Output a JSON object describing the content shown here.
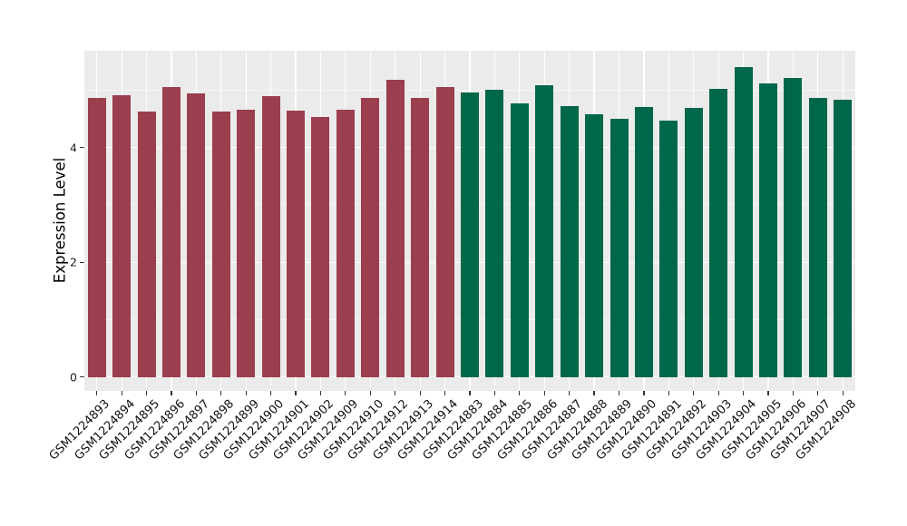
{
  "chart_data": {
    "type": "bar",
    "title": "",
    "xlabel": "",
    "ylabel": "Expression Level",
    "categories": [
      "GSM1224893",
      "GSM1224894",
      "GSM1224895",
      "GSM1224896",
      "GSM1224897",
      "GSM1224898",
      "GSM1224899",
      "GSM1224900",
      "GSM1224901",
      "GSM1224902",
      "GSM1224909",
      "GSM1224910",
      "GSM1224912",
      "GSM1224913",
      "GSM1224914",
      "GSM1224883",
      "GSM1224884",
      "GSM1224885",
      "GSM1224886",
      "GSM1224887",
      "GSM1224888",
      "GSM1224889",
      "GSM1224890",
      "GSM1224891",
      "GSM1224892",
      "GSM1224903",
      "GSM1224904",
      "GSM1224905",
      "GSM1224906",
      "GSM1224907",
      "GSM1224908"
    ],
    "values": [
      4.86,
      4.92,
      4.62,
      5.06,
      4.95,
      4.63,
      4.66,
      4.9,
      4.64,
      4.53,
      4.66,
      4.86,
      5.18,
      4.87,
      5.05,
      4.96,
      5.0,
      4.77,
      5.09,
      4.73,
      4.58,
      4.5,
      4.71,
      4.47,
      4.69,
      5.02,
      5.4,
      5.11,
      5.21,
      4.86,
      4.84
    ],
    "bar_groups": [
      "maroon",
      "maroon",
      "maroon",
      "maroon",
      "maroon",
      "maroon",
      "maroon",
      "maroon",
      "maroon",
      "maroon",
      "maroon",
      "maroon",
      "maroon",
      "maroon",
      "maroon",
      "green",
      "green",
      "green",
      "green",
      "green",
      "green",
      "green",
      "green",
      "green",
      "green",
      "green",
      "green",
      "green",
      "green",
      "green",
      "green"
    ],
    "palette": {
      "maroon": "#9B3E4D",
      "green": "#00674B"
    },
    "yticks": [
      "0",
      "2",
      "4"
    ],
    "ytick_values": [
      0,
      2,
      4
    ],
    "grid": {
      "major": [
        0,
        2,
        4
      ],
      "minor": [
        1,
        3,
        5
      ]
    },
    "ylim_display": [
      -0.24,
      5.67
    ],
    "panel_bg": "#EBEBEB",
    "legend": "none",
    "x_label_angle_deg": 45
  }
}
